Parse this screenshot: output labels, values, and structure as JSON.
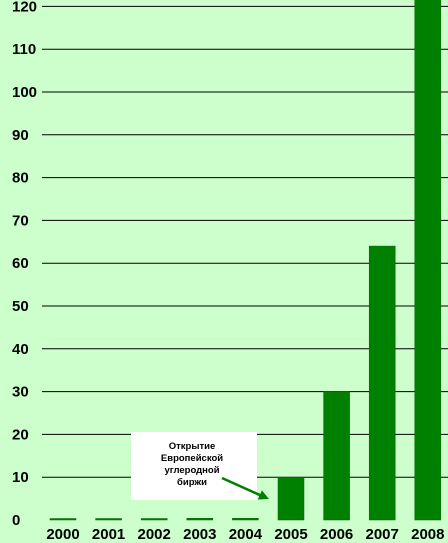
{
  "colors": {
    "background": "#ccffcc",
    "bar": "#008000",
    "bar_edge": "#006400",
    "gridline": "#000000",
    "annotation_box": "#ffffff",
    "arrow": "#008000"
  },
  "chart_data": {
    "type": "bar",
    "title": "",
    "xlabel": "",
    "ylabel": "",
    "categories": [
      "2000",
      "2001",
      "2002",
      "2003",
      "2004",
      "2005",
      "2006",
      "2007",
      "2008"
    ],
    "values": [
      0.2,
      0.3,
      0.3,
      0.4,
      0.4,
      10,
      30,
      64,
      125
    ],
    "ylim": [
      0,
      125
    ],
    "yticks": [
      0,
      10,
      20,
      30,
      40,
      50,
      60,
      70,
      80,
      90,
      100,
      110,
      120
    ],
    "grid": true,
    "annotation": {
      "lines": [
        "Открытие",
        "Европейской",
        "углеродной",
        "биржи"
      ],
      "points_to": "2005"
    }
  }
}
